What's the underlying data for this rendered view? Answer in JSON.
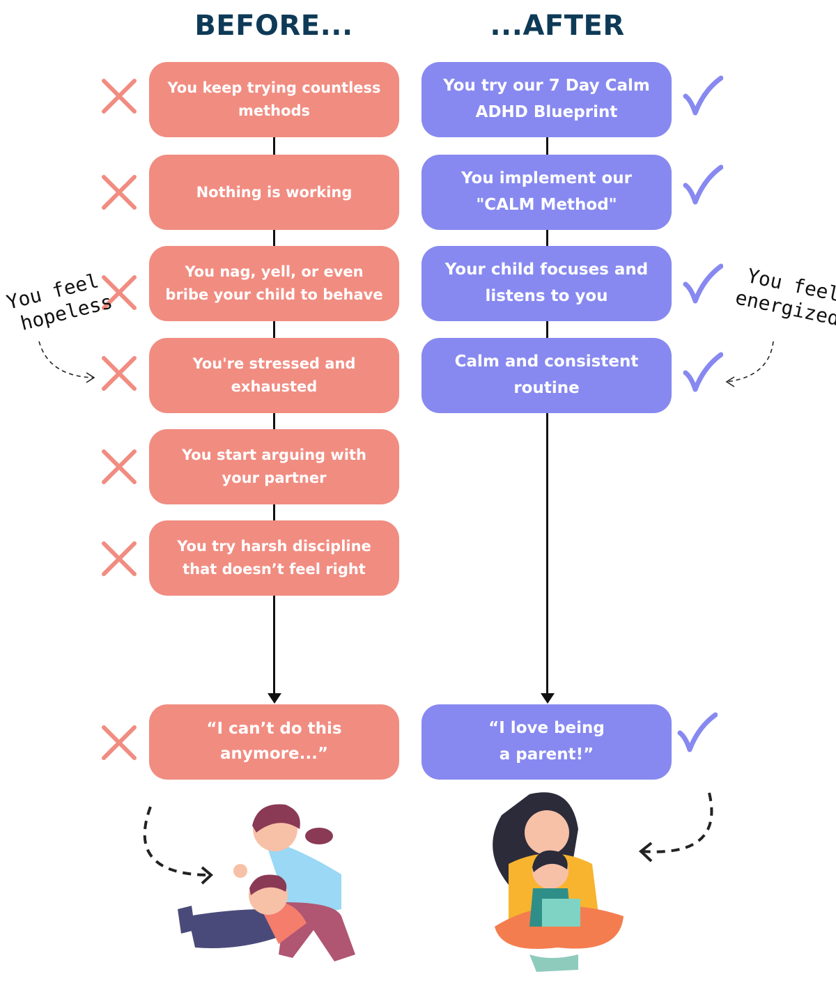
{
  "headers": {
    "before": "BEFORE...",
    "after": "...AFTER"
  },
  "before_steps": [
    {
      "text": "You keep trying countless methods"
    },
    {
      "text": "Nothing is working"
    },
    {
      "text": "You nag, yell, or even bribe your child to behave"
    },
    {
      "text": "You're stressed and exhausted"
    },
    {
      "text": "You start arguing with your partner"
    },
    {
      "text": "You try harsh  discipline that doesn’t feel right"
    }
  ],
  "before_result": "“I can’t do this anymore...”",
  "after_steps": [
    {
      "text": "You try our 7 Day Calm ADHD Blueprint"
    },
    {
      "text": "You implement our \"CALM Method\""
    },
    {
      "text": "Your child focuses and listens to you"
    },
    {
      "text": "Calm and consistent routine"
    }
  ],
  "after_result": "“I love being a parent!”",
  "notes": {
    "left_line1": "You feel",
    "left_line2": "hopeless",
    "right_line1": "You feel",
    "right_line2": "energized"
  },
  "icons": {
    "before_mark": "x-icon",
    "after_mark": "checkmark-icon"
  },
  "colors": {
    "before": "#f18c81",
    "after": "#8789f0",
    "title": "#0e3a57"
  }
}
